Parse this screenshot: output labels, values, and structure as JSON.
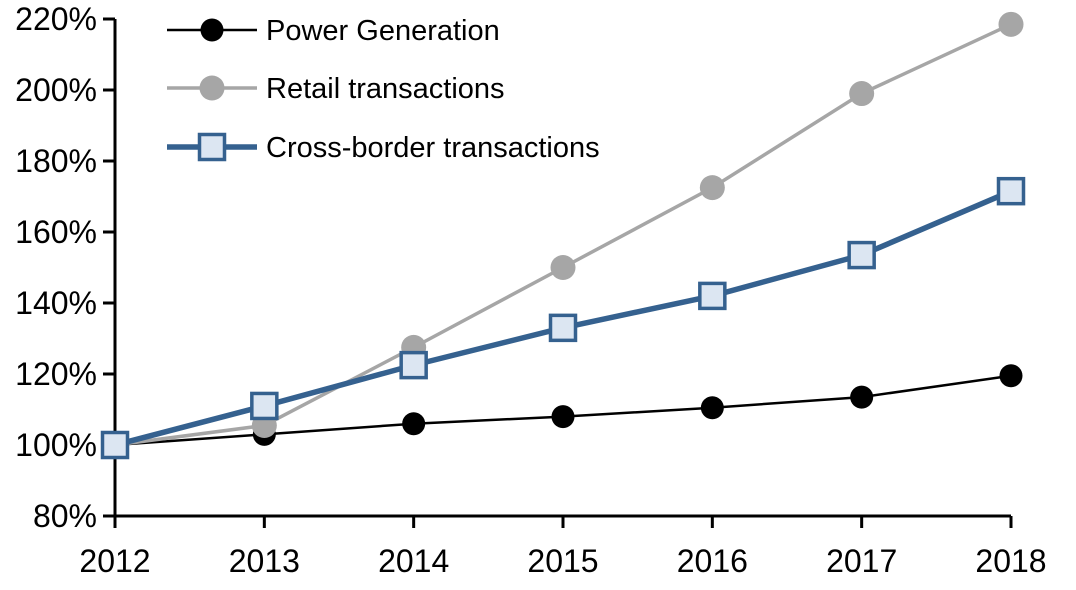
{
  "chart_data": {
    "type": "line",
    "title": "",
    "xlabel": "",
    "ylabel": "",
    "x": [
      2012,
      2013,
      2014,
      2015,
      2016,
      2017,
      2018
    ],
    "x_tick_labels": [
      "2012",
      "2013",
      "2014",
      "2015",
      "2016",
      "2017",
      "2018"
    ],
    "y_ticks": [
      80,
      100,
      120,
      140,
      160,
      180,
      200,
      220
    ],
    "y_tick_labels": [
      "80%",
      "100%",
      "120%",
      "140%",
      "160%",
      "180%",
      "200%",
      "220%"
    ],
    "ylim": [
      80,
      220
    ],
    "grid": false,
    "legend_position": "top-left-inside",
    "background_color": "#FFFFFF",
    "axis_color": "#000000",
    "series": [
      {
        "name": "Power Generation",
        "color": "#000000",
        "marker": "circle",
        "marker_fill": "#000000",
        "values": [
          100,
          103,
          106,
          108,
          110.5,
          113.5,
          119.5
        ]
      },
      {
        "name": "Retail transactions",
        "color": "#A6A6A6",
        "marker": "circle",
        "marker_fill": "#A6A6A6",
        "values": [
          100,
          105.5,
          127.5,
          150,
          172.5,
          199,
          218.5
        ]
      },
      {
        "name": "Cross-border transactions",
        "color": "#35618F",
        "marker": "square",
        "marker_fill": "#DCE6F2",
        "values": [
          100,
          111,
          122.5,
          133,
          142,
          153.5,
          171.5
        ]
      }
    ]
  }
}
